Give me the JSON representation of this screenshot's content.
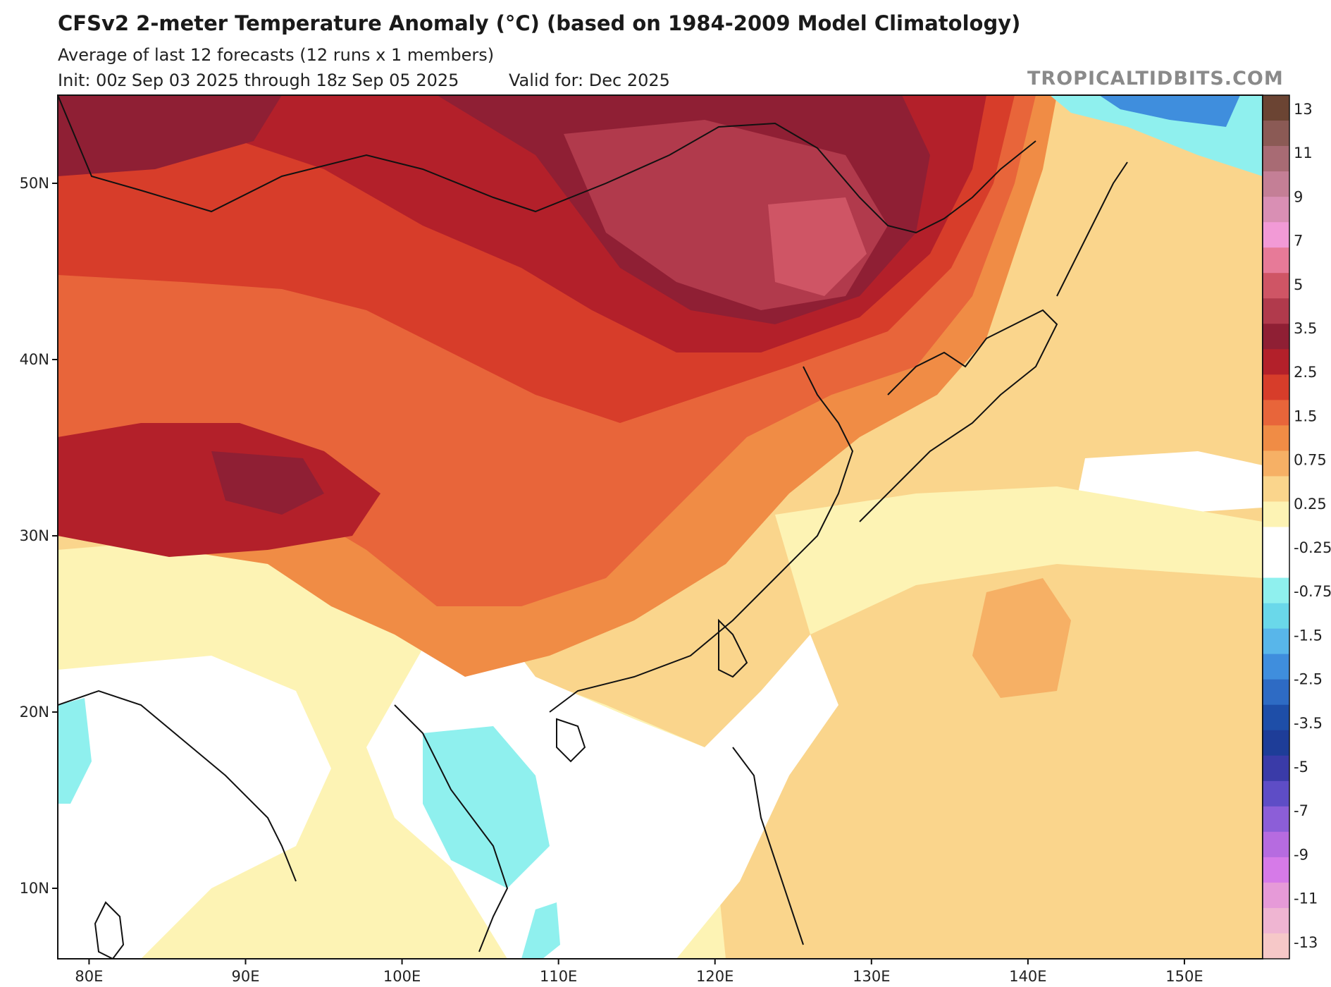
{
  "header": {
    "title": "CFSv2 2-meter Temperature Anomaly (°C) (based on 1984-2009 Model Climatology)",
    "subtitle": "Average of last 12 forecasts (12 runs x 1 members)",
    "init": "Init: 00z Sep 03 2025 through 18z Sep 05 2025",
    "valid": "Valid for: Dec 2025",
    "brand": "TROPICALTIDBITS.COM"
  },
  "axes": {
    "lat_ticks": [
      {
        "value": 50,
        "label": "50N"
      },
      {
        "value": 40,
        "label": "40N"
      },
      {
        "value": 30,
        "label": "30N"
      },
      {
        "value": 20,
        "label": "20N"
      },
      {
        "value": 10,
        "label": "10N"
      }
    ],
    "lon_ticks": [
      {
        "value": 80,
        "label": "80E"
      },
      {
        "value": 90,
        "label": "90E"
      },
      {
        "value": 100,
        "label": "100E"
      },
      {
        "value": 110,
        "label": "110E"
      },
      {
        "value": 120,
        "label": "120E"
      },
      {
        "value": 130,
        "label": "130E"
      },
      {
        "value": 140,
        "label": "140E"
      },
      {
        "value": 150,
        "label": "150E"
      }
    ],
    "lon_range": [
      78,
      155
    ],
    "lat_range": [
      6,
      55
    ]
  },
  "colorbar": {
    "bins": [
      {
        "color": "#6b4433"
      },
      {
        "color": "#8b5a55"
      },
      {
        "color": "#a86b74"
      },
      {
        "color": "#c47f96"
      },
      {
        "color": "#d98fb4"
      },
      {
        "color": "#f29ad6"
      },
      {
        "color": "#e77a98"
      },
      {
        "color": "#cf5565"
      },
      {
        "color": "#b13a4c"
      },
      {
        "color": "#8f1f34"
      },
      {
        "color": "#b3202a"
      },
      {
        "color": "#d73d2a"
      },
      {
        "color": "#e8653a"
      },
      {
        "color": "#f08c45"
      },
      {
        "color": "#f6b065"
      },
      {
        "color": "#fad58c"
      },
      {
        "color": "#fdf3b4"
      },
      {
        "color": "#ffffff"
      },
      {
        "color": "#ffffff"
      },
      {
        "color": "#8ff0ee"
      },
      {
        "color": "#6ad8ea"
      },
      {
        "color": "#58b6ea"
      },
      {
        "color": "#3f8edd"
      },
      {
        "color": "#2e6bc4"
      },
      {
        "color": "#1e4ea8"
      },
      {
        "color": "#1e3d98"
      },
      {
        "color": "#3a3ba8"
      },
      {
        "color": "#5e4dc6"
      },
      {
        "color": "#8c5ed8"
      },
      {
        "color": "#b66be0"
      },
      {
        "color": "#d67ae8"
      },
      {
        "color": "#e69ad8"
      },
      {
        "color": "#efb5d2"
      },
      {
        "color": "#f6c8c8"
      }
    ],
    "labels": [
      "13",
      "11",
      "9",
      "7",
      "5",
      "3.5",
      "2.5",
      "1.5",
      "0.75",
      "0.25",
      "-0.25",
      "-0.75",
      "-1.5",
      "-2.5",
      "-3.5",
      "-5",
      "-7",
      "-9",
      "-11",
      "-13"
    ]
  },
  "colors": {
    "strong_warm": "#8f1f34",
    "warm": "#d73d2a",
    "moderate_warm": "#e8653a",
    "light_warm": "#f6b065",
    "near_zero": "#fdf3b4",
    "neutral": "#ffffff",
    "cool": "#8ff0ee",
    "cold": "#3f8edd"
  }
}
